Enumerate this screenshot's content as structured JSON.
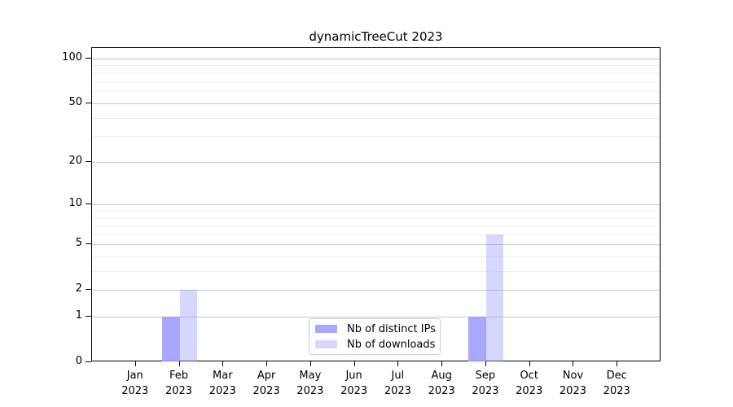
{
  "chart_data": {
    "type": "bar",
    "title": "dynamicTreeCut 2023",
    "x_months": [
      "Jan",
      "Feb",
      "Mar",
      "Apr",
      "May",
      "Jun",
      "Jul",
      "Aug",
      "Sep",
      "Oct",
      "Nov",
      "Dec"
    ],
    "x_year": "2023",
    "series": [
      {
        "name": "Nb of distinct IPs",
        "color": "rgba(153,153,255,0.85)",
        "values": [
          0,
          1,
          0,
          0,
          0,
          0,
          0,
          0,
          1,
          0,
          0,
          0
        ]
      },
      {
        "name": "Nb of downloads",
        "color": "rgba(153,153,255,0.38)",
        "values": [
          0,
          2,
          0,
          0,
          0,
          0,
          0,
          0,
          6,
          0,
          0,
          0
        ]
      }
    ],
    "y_scale": "log1p",
    "ylim": [
      0,
      117
    ],
    "y_major_ticks": [
      0,
      1,
      2,
      5,
      10,
      20,
      50,
      100
    ],
    "y_minor_gridlines": [
      3,
      4,
      6,
      7,
      8,
      9,
      30,
      40,
      60,
      70,
      80,
      90
    ],
    "grid": {
      "major_color": "#c8c8c8",
      "minor_color": "#ededed"
    },
    "axis_color": "#000000",
    "legend_position": "lower-center-inside"
  }
}
